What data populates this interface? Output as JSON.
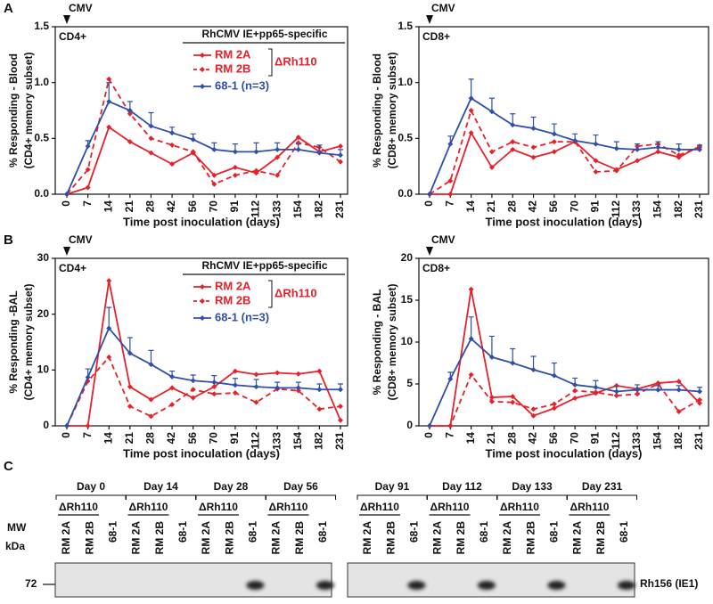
{
  "chart_data": [
    {
      "type": "line",
      "panel": "A",
      "marker_label": "CMV",
      "label": "CD4+",
      "ylabel": [
        "% Responding - Blood",
        "(CD4+ memory subset)"
      ],
      "xlabel": "Time post inoculation (days)",
      "legend_title": "RhCMV IE+pp65-specific",
      "legend_group": "ΔRh110",
      "categories": [
        "0",
        "7",
        "14",
        "21",
        "28",
        "42",
        "56",
        "70",
        "91",
        "112",
        "133",
        "154",
        "182",
        "231"
      ],
      "ylim": [
        0,
        1.5
      ],
      "yticks": [
        {
          "value": 0,
          "label": "0.0"
        },
        0.5,
        {
          "value": 1,
          "label": "1.0"
        },
        1.5
      ],
      "series": [
        {
          "name": "RM 2A",
          "color": "#e8202a",
          "style": "solid",
          "values": [
            0,
            0.06,
            0.6,
            0.47,
            0.37,
            0.27,
            0.37,
            0.17,
            0.24,
            0.19,
            0.33,
            0.51,
            0.38,
            0.43
          ]
        },
        {
          "name": "RM 2B",
          "color": "#e8202a",
          "style": "dashed",
          "values": [
            0,
            0.22,
            1.03,
            0.72,
            0.5,
            0.44,
            0.38,
            0.09,
            0.17,
            0.21,
            0.17,
            0.46,
            0.42,
            0.29
          ]
        },
        {
          "name": "68-1 (n=3)",
          "color": "#2f4fa8",
          "style": "solid",
          "values": [
            0,
            0.43,
            0.83,
            0.75,
            0.61,
            0.55,
            0.49,
            0.4,
            0.38,
            0.38,
            0.4,
            0.4,
            0.37,
            0.35
          ],
          "errors": [
            0,
            0.05,
            0.17,
            0.08,
            0.12,
            0.05,
            0.05,
            0.06,
            0.07,
            0.08,
            0.06,
            0.05,
            0.07,
            0.05
          ]
        }
      ]
    },
    {
      "type": "line",
      "marker_label": "CMV",
      "label": "CD8+",
      "ylabel": [
        "% Responding - Blood",
        "(CD8+ memory subset)"
      ],
      "xlabel": "Time post inoculation (days)",
      "categories": [
        "0",
        "7",
        "14",
        "21",
        "28",
        "42",
        "56",
        "70",
        "91",
        "112",
        "133",
        "154",
        "182",
        "231"
      ],
      "ylim": [
        0,
        1.5
      ],
      "yticks": [
        {
          "value": 0,
          "label": "0.0"
        },
        0.5,
        {
          "value": 1,
          "label": "1.0"
        },
        1.5
      ],
      "series": [
        {
          "color": "#e8202a",
          "style": "solid",
          "values": [
            0,
            0,
            0.55,
            0.24,
            0.4,
            0.33,
            0.38,
            0.47,
            0.3,
            0.22,
            0.3,
            0.38,
            0.33,
            0.43
          ]
        },
        {
          "color": "#e8202a",
          "style": "dashed",
          "values": [
            0,
            0.12,
            0.75,
            0.38,
            0.47,
            0.42,
            0.47,
            0.47,
            0.2,
            0.21,
            0.43,
            0.45,
            0.35,
            0.42
          ]
        },
        {
          "color": "#2f4fa8",
          "style": "solid",
          "values": [
            0,
            0.45,
            0.86,
            0.74,
            0.62,
            0.59,
            0.54,
            0.48,
            0.45,
            0.41,
            0.4,
            0.42,
            0.4,
            0.4
          ],
          "errors": [
            0,
            0.07,
            0.17,
            0.12,
            0.1,
            0.1,
            0.09,
            0.06,
            0.08,
            0.06,
            0.05,
            0.05,
            0.05,
            0.04
          ]
        }
      ]
    },
    {
      "type": "line",
      "panel": "B",
      "marker_label": "CMV",
      "label": "CD4+",
      "ylabel": [
        "% Responding -BAL",
        "(CD4+ memory subset)"
      ],
      "xlabel": "Time post inoculation (days)",
      "legend_title": "RhCMV IE+pp65-specific",
      "legend_group": "ΔRh110",
      "categories": [
        "0",
        "7",
        "14",
        "21",
        "28",
        "42",
        "56",
        "70",
        "91",
        "112",
        "133",
        "154",
        "182",
        "231"
      ],
      "ylim": [
        0,
        30
      ],
      "yticks": [
        0,
        10,
        20,
        30
      ],
      "series": [
        {
          "name": "RM 2A",
          "color": "#e8202a",
          "style": "solid",
          "values": [
            0,
            0,
            26,
            7,
            4.7,
            6.8,
            5,
            7,
            9.8,
            9.2,
            9.5,
            9.3,
            9.8,
            1
          ]
        },
        {
          "name": "RM 2B",
          "color": "#e8202a",
          "style": "dashed",
          "values": [
            0,
            8,
            12.3,
            3.5,
            1.7,
            3.8,
            6.5,
            5.7,
            5.9,
            4.2,
            6.6,
            6.3,
            3,
            3.5
          ]
        },
        {
          "name": "68-1 (n=3)",
          "color": "#2f4fa8",
          "style": "solid",
          "values": [
            0,
            8.7,
            17.5,
            13,
            11,
            8.8,
            8.1,
            7.8,
            7.3,
            7,
            6.8,
            6.8,
            6.5,
            6.5
          ],
          "errors": [
            0,
            1.5,
            3.7,
            2.8,
            2.5,
            1,
            1,
            1.2,
            1.2,
            1.3,
            1,
            1,
            1,
            1
          ]
        }
      ]
    },
    {
      "type": "line",
      "marker_label": "CMV",
      "label": "CD8+",
      "ylabel": [
        "% Responding - BAL",
        "(CD8+ memory subset)"
      ],
      "xlabel": "Time post inoculation (days)",
      "categories": [
        "0",
        "7",
        "14",
        "21",
        "28",
        "42",
        "56",
        "70",
        "91",
        "112",
        "133",
        "154",
        "182",
        "231"
      ],
      "ylim": [
        0,
        20
      ],
      "yticks": [
        0,
        5,
        10,
        15,
        20
      ],
      "series": [
        {
          "color": "#e8202a",
          "style": "solid",
          "values": [
            0,
            0,
            16.3,
            3.4,
            3.5,
            1.2,
            2.1,
            3.3,
            3.9,
            4.8,
            4.4,
            5.1,
            5.3,
            2.7
          ]
        },
        {
          "color": "#e8202a",
          "style": "dashed",
          "values": [
            0,
            0,
            6.1,
            2.9,
            2.8,
            2,
            2.6,
            4.2,
            4,
            3.6,
            3.8,
            5,
            1.7,
            3.1
          ]
        },
        {
          "color": "#2f4fa8",
          "style": "solid",
          "values": [
            0,
            5.6,
            10.4,
            8.2,
            7.5,
            6.7,
            6,
            4.9,
            4.6,
            4.1,
            4.3,
            4.3,
            4.3,
            4.1
          ],
          "errors": [
            0,
            0.8,
            2.6,
            2.5,
            1.7,
            1.6,
            1.5,
            0.8,
            0.8,
            0.6,
            0.6,
            0.5,
            0.5,
            0.5
          ]
        }
      ]
    }
  ],
  "blot": {
    "panel": "C",
    "groups": [
      [
        "Day 0",
        "Day 14",
        "Day 28",
        "Day 56"
      ],
      [
        "Day 91",
        "Day 112",
        "Day 133",
        "Day 231"
      ]
    ],
    "deletion": "ΔRh110",
    "lanes": [
      "RM 2A",
      "RM 2B",
      "68-1"
    ],
    "mw": "MW",
    "unit": "kDa",
    "marker": "72",
    "band_label": "Rh156 (IE1)"
  }
}
